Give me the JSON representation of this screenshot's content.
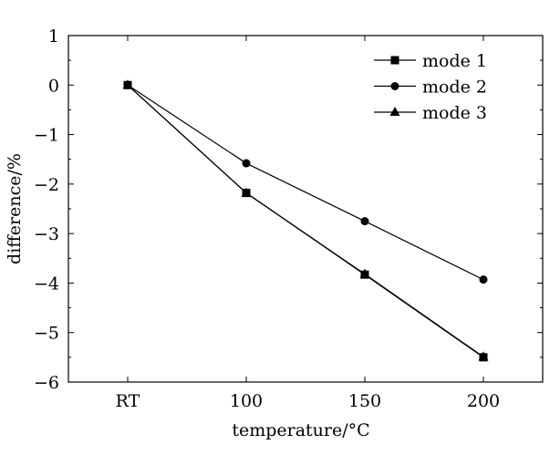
{
  "chart_data": {
    "type": "line",
    "categories": [
      "RT",
      "100",
      "150",
      "200"
    ],
    "series": [
      {
        "name": "mode 1",
        "marker": "square",
        "values": [
          0,
          -2.18,
          -3.83,
          -5.5
        ]
      },
      {
        "name": "mode 2",
        "marker": "circle",
        "values": [
          0,
          -1.58,
          -2.75,
          -3.93
        ]
      },
      {
        "name": "mode 3",
        "marker": "triangle",
        "values": [
          0,
          -2.18,
          -3.82,
          -5.49
        ]
      }
    ],
    "xlabel": "temperature/°C",
    "ylabel": "difference/%",
    "ylim": [
      -6,
      1
    ],
    "yticks": [
      "1",
      "0",
      "−1",
      "−2",
      "−3",
      "−4",
      "−5",
      "−6"
    ],
    "grid": false,
    "legend_position": "top-right",
    "colors": {
      "line": "#000000",
      "background": "#ffffff"
    }
  }
}
